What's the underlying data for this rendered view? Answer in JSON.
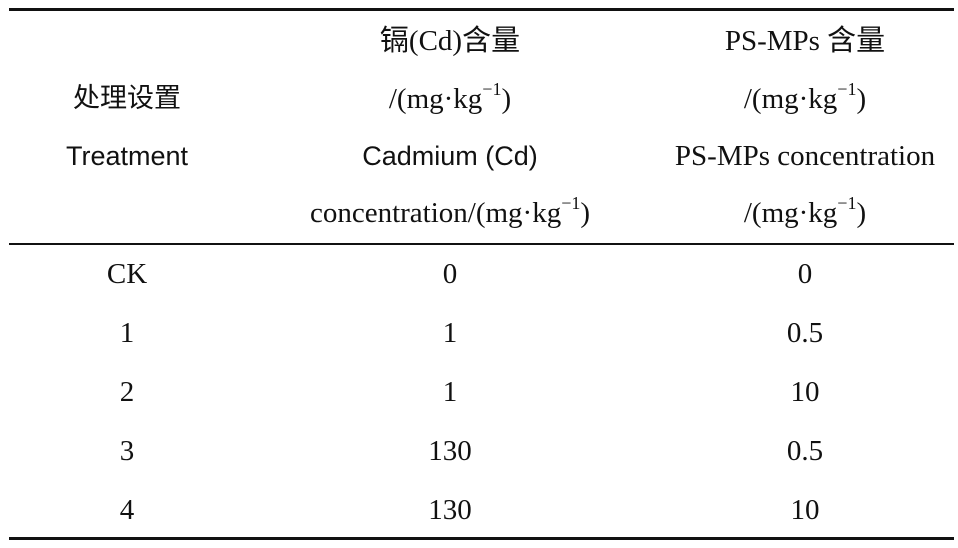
{
  "header": {
    "col1": {
      "zh": "处理设置",
      "en": "Treatment"
    },
    "col2": {
      "zh_line": "镉(Cd)含量",
      "unit_a_prefix": "/(mg·kg",
      "unit_a_exp": "−1",
      "unit_a_suffix": ")",
      "en_line1": "Cadmium (Cd)",
      "en_line2_prefix": "concentration/(mg·kg",
      "en_line2_exp": "−1",
      "en_line2_suffix": ")"
    },
    "col3": {
      "zh_line": "PS-MPs 含量",
      "unit_a_prefix": "/(mg·kg",
      "unit_a_exp": "−1",
      "unit_a_suffix": ")",
      "en_line1": "PS-MPs concentration",
      "unit_b_prefix": "/(mg·kg",
      "unit_b_exp": "−1",
      "unit_b_suffix": ")"
    }
  },
  "rows": [
    {
      "treatment": "CK",
      "cd": "0",
      "psmps": "0"
    },
    {
      "treatment": "1",
      "cd": "1",
      "psmps": "0.5"
    },
    {
      "treatment": "2",
      "cd": "1",
      "psmps": "10"
    },
    {
      "treatment": "3",
      "cd": "130",
      "psmps": "0.5"
    },
    {
      "treatment": "4",
      "cd": "130",
      "psmps": "10"
    }
  ]
}
